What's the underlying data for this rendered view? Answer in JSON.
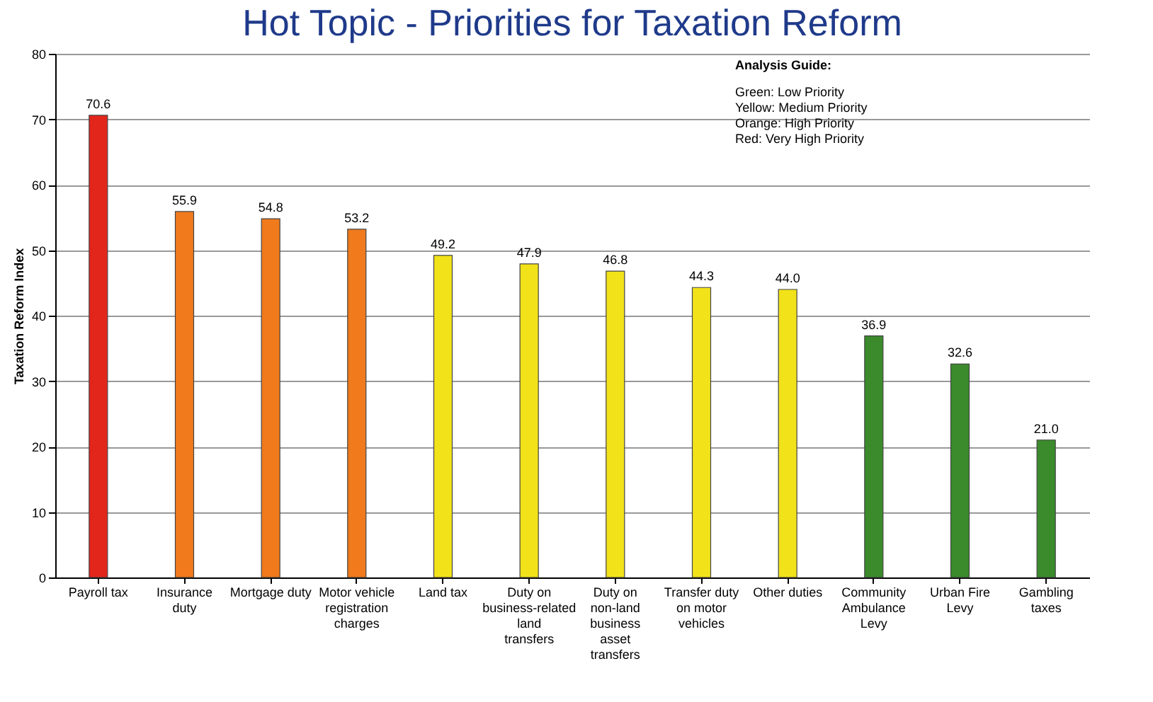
{
  "chart_data": {
    "type": "bar",
    "title": "Hot Topic - Priorities for Taxation Reform",
    "ylabel": "Taxation Reform Index",
    "categories": [
      "Payroll tax",
      "Insurance duty",
      "Mortgage duty",
      "Motor vehicle registration charges",
      "Land tax",
      "Duty on business-related land transfers",
      "Duty on non-land business asset transfers",
      "Transfer duty on motor vehicles",
      "Other duties",
      "Community Ambulance Levy",
      "Urban Fire Levy",
      "Gambling taxes"
    ],
    "values": [
      70.6,
      55.9,
      54.8,
      53.2,
      49.2,
      47.9,
      46.8,
      44.3,
      44.0,
      36.9,
      32.6,
      21.0
    ],
    "colors": [
      "#e3261c",
      "#f07a1c",
      "#f07a1c",
      "#f07a1c",
      "#f2e21a",
      "#f2e21a",
      "#f2e21a",
      "#f2e21a",
      "#f2e21a",
      "#3b8a2c",
      "#3b8a2c",
      "#3b8a2c"
    ],
    "ylim": [
      0,
      80
    ],
    "yticks": [
      0,
      10,
      20,
      30,
      40,
      50,
      60,
      70,
      80
    ],
    "grid": "y",
    "value_labels": [
      "70.6",
      "55.9",
      "54.8",
      "53.2",
      "49.2",
      "47.9",
      "46.8",
      "44.3",
      "44.0",
      "36.9",
      "32.6",
      "21.0"
    ],
    "annotations": [
      "Analysis Guide:",
      "Green: Low Priority",
      "Yellow: Medium Priority",
      "Orange: High Priority",
      "Red: Very High Priority"
    ]
  }
}
